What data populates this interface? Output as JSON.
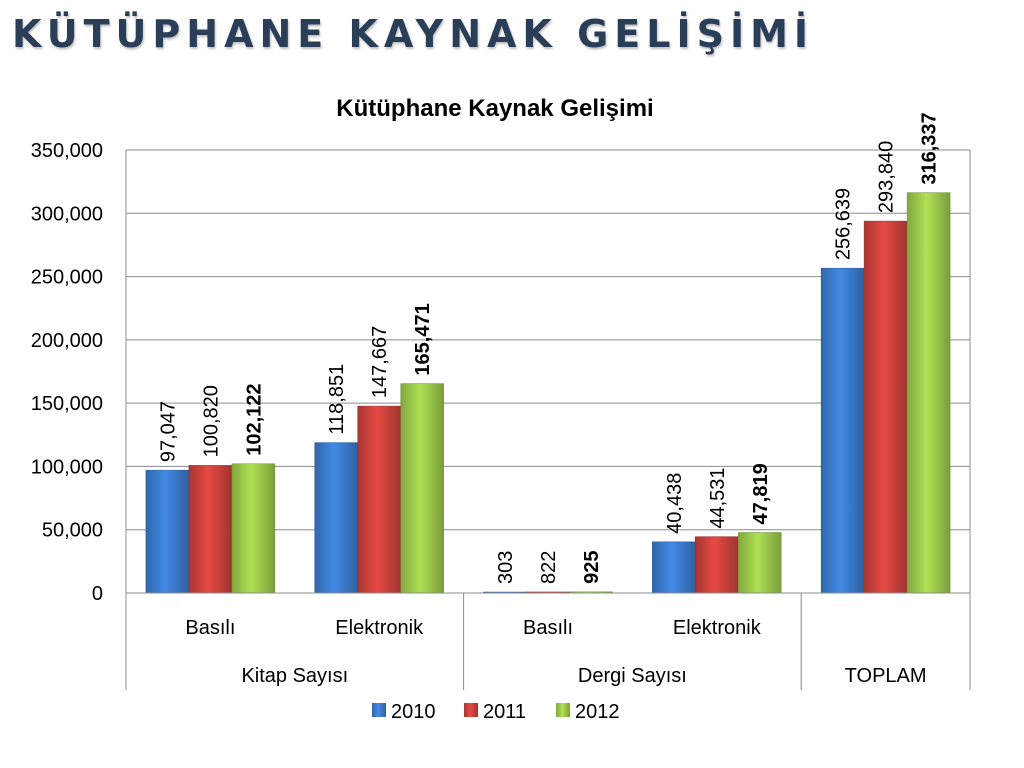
{
  "slide": {
    "title": "KÜTÜPHANE KAYNAK GELİŞİMİ"
  },
  "colors": {
    "2010": "#3a78c8",
    "2011": "#c8403a",
    "2012": "#98c44a",
    "title": "#2a3f57"
  },
  "chart_data": {
    "type": "bar",
    "title": "Kütüphane Kaynak Gelişimi",
    "xlabel": "",
    "ylabel": "",
    "ylim": [
      0,
      350000
    ],
    "y_ticks": [
      "0",
      "50,000",
      "100,000",
      "150,000",
      "200,000",
      "250,000",
      "300,000",
      "350,000"
    ],
    "grid": true,
    "legend_position": "bottom",
    "categories": [
      "Basılı",
      "Elektronik",
      "Basılı",
      "Elektronik",
      ""
    ],
    "groups": [
      {
        "label": "Kitap Sayısı",
        "span": 2
      },
      {
        "label": "Dergi Sayısı",
        "span": 2
      },
      {
        "label": "TOPLAM",
        "span": 1
      }
    ],
    "series": [
      {
        "name": "2010",
        "values": [
          97047,
          118851,
          303,
          40438,
          256639
        ],
        "labels": [
          "97,047",
          "118,851",
          "303",
          "40,438",
          "256,639"
        ],
        "bold": false
      },
      {
        "name": "2011",
        "values": [
          100820,
          147667,
          822,
          44531,
          293840
        ],
        "labels": [
          "100,820",
          "147,667",
          "822",
          "44,531",
          "293,840"
        ],
        "bold": false
      },
      {
        "name": "2012",
        "values": [
          102122,
          165471,
          925,
          47819,
          316337
        ],
        "labels": [
          "102,122",
          "165,471",
          "925",
          "47,819",
          "316,337"
        ],
        "bold": true
      }
    ]
  }
}
